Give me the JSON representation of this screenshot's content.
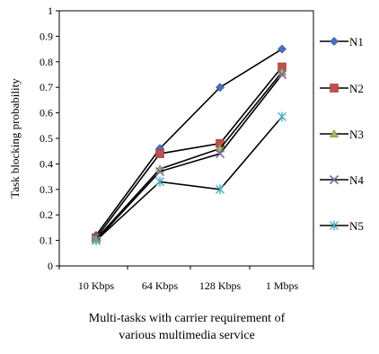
{
  "chart_data": {
    "type": "line",
    "title": "",
    "xlabel_lines": [
      "Multi-tasks with carrier  requirement of",
      "various multimedia service"
    ],
    "ylabel": "Task  blocking probability",
    "categories": [
      "10 Kbps",
      "64 Kbps",
      "128 Kbps",
      "1 Mbps"
    ],
    "ylim": [
      0,
      1
    ],
    "yticks": [
      "0",
      "0.1",
      "0.2",
      "0.3",
      "0.4",
      "0.5",
      "0.6",
      "0.7",
      "0.8",
      "0.9",
      "1"
    ],
    "grid": false,
    "legend_position": "right",
    "series": [
      {
        "name": "N1",
        "values": [
          0.12,
          0.46,
          0.7,
          0.85
        ],
        "color": "#4472C4",
        "marker": "diamond"
      },
      {
        "name": "N2",
        "values": [
          0.11,
          0.44,
          0.48,
          0.78
        ],
        "color": "#C0504D",
        "marker": "square"
      },
      {
        "name": "N3",
        "values": [
          0.105,
          0.38,
          0.46,
          0.76
        ],
        "color": "#9BBB59",
        "marker": "triangle"
      },
      {
        "name": "N4",
        "values": [
          0.1,
          0.37,
          0.44,
          0.75
        ],
        "color": "#8064A2",
        "marker": "x"
      },
      {
        "name": "N5",
        "values": [
          0.1,
          0.33,
          0.3,
          0.585
        ],
        "color": "#4BACC6",
        "marker": "star"
      }
    ]
  }
}
